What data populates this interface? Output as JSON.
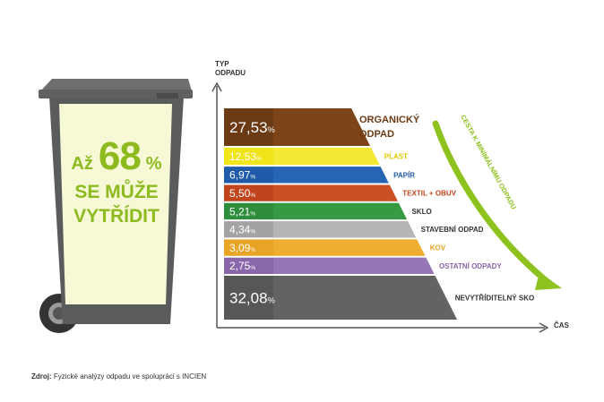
{
  "bin": {
    "prefix": "Až",
    "percent": "68",
    "percent_sign": "%",
    "line2": "SE MŮŽE",
    "line3": "VYTŘÍDIT",
    "colors": {
      "body": "#5a5b5d",
      "lid": "#6e6f71",
      "panel": "#f6f8d6",
      "text": "#8dbb1f"
    }
  },
  "chart_data": {
    "type": "bar",
    "ylabel": "TYP\nODPADU",
    "xlabel": "ČAS",
    "arrow_label": "CESTA K MINIMÁLNÍMU ODPADU",
    "series": [
      {
        "name": "ORGANICKÝ ODPAD",
        "value": 27.53,
        "value_text": "27,53",
        "color": "#6b3a15",
        "color_light": "#8a4d1b"
      },
      {
        "name": "PLAST",
        "value": 12.53,
        "value_text": "12,53",
        "color": "#f0e41a",
        "color_light": "#f7ef4a"
      },
      {
        "name": "PAPÍR",
        "value": 6.97,
        "value_text": "6,97",
        "color": "#1f5ba8",
        "color_light": "#2e6fc0"
      },
      {
        "name": "TEXTIL + OBUV",
        "value": 5.5,
        "value_text": "5,50",
        "color": "#c0451c",
        "color_light": "#d45a2b"
      },
      {
        "name": "SKLO",
        "value": 5.21,
        "value_text": "5,21",
        "color": "#2e8d3c",
        "color_light": "#3ea64c"
      },
      {
        "name": "STAVEBNÍ ODPAD",
        "value": 4.34,
        "value_text": "4,34",
        "color": "#a3a3a3",
        "color_light": "#c4c4c4"
      },
      {
        "name": "KOV",
        "value": 3.09,
        "value_text": "3,09",
        "color": "#e8a424",
        "color_light": "#f3b83c"
      },
      {
        "name": "OSTATNÍ ODPADY",
        "value": 2.75,
        "value_text": "2,75",
        "color": "#8a67a8",
        "color_light": "#a283bf"
      },
      {
        "name": "NEVYTŘÍDITELNÝ SKO",
        "value": 32.08,
        "value_text": "32,08",
        "color": "#575757",
        "color_light": "#6d6d6d"
      }
    ],
    "label_colors": [
      "#6b3a15",
      "#e0c800",
      "#1f5ba8",
      "#c0451c",
      "#333333",
      "#333333",
      "#e8a424",
      "#8a67a8",
      "#333333"
    ],
    "percent_sign": "%",
    "arrow_color": "#8dc21f"
  },
  "source": {
    "label": "Zdroj:",
    "text": " Fyzické analýzy odpadu ve spolupráci s INCIEN"
  }
}
